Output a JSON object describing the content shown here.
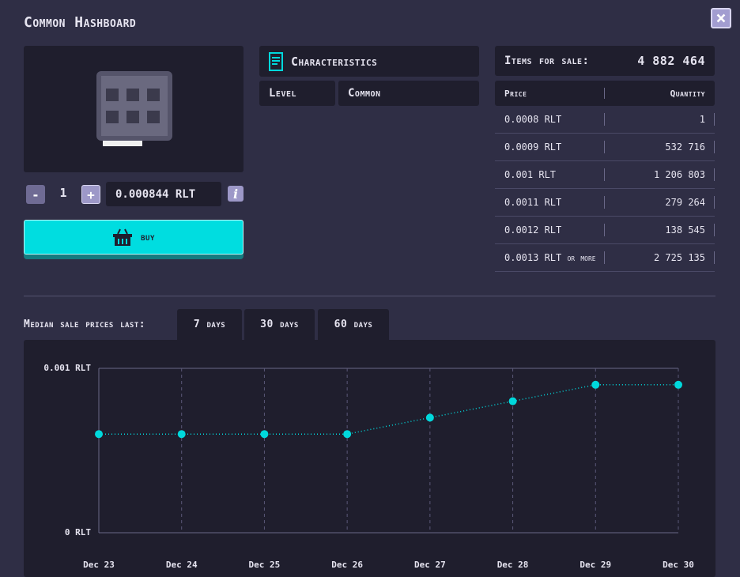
{
  "header": {
    "title": "Common Hashboard",
    "close": "×"
  },
  "item": {
    "minus": "-",
    "quantity": "1",
    "plus": "+",
    "price": "0.000844 RLT",
    "info": "i",
    "buy": "buy"
  },
  "characteristics": {
    "title": "Characteristics",
    "rows": [
      [
        "Level",
        "Common"
      ]
    ]
  },
  "sale": {
    "label": "Items for sale:",
    "total": "4 882 464",
    "columns": [
      "Price",
      "Quantity"
    ],
    "rows": [
      [
        "0.0008 RLT",
        "1"
      ],
      [
        "0.0009 RLT",
        "532 716"
      ],
      [
        "0.001 RLT",
        "1 206 803"
      ],
      [
        "0.0011 RLT",
        "279 264"
      ],
      [
        "0.0012 RLT",
        "138 545"
      ],
      [
        "0.0013 RLT or more",
        "2 725 135"
      ]
    ]
  },
  "history": {
    "label": "Median sale prices last:",
    "tabs": [
      "7 days",
      "30 days",
      "60 days"
    ]
  },
  "chart_data": {
    "type": "line",
    "categories": [
      "Dec 23",
      "Dec 24",
      "Dec 25",
      "Dec 26",
      "Dec 27",
      "Dec 28",
      "Dec 29",
      "Dec 30"
    ],
    "values": [
      0.0006,
      0.0006,
      0.0006,
      0.0006,
      0.0007,
      0.0008,
      0.0009,
      0.0009
    ],
    "color": "#00d8dc",
    "ylim": [
      0,
      0.001
    ],
    "yticks": [
      {
        "value": 0,
        "label": "0 RLT"
      },
      {
        "value": 0.001,
        "label": "0.001 RLT"
      }
    ],
    "grid": true
  }
}
